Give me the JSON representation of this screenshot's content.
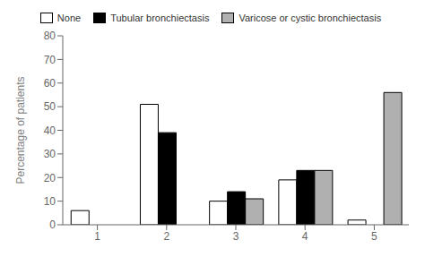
{
  "chart_data": {
    "type": "bar",
    "categories": [
      "1",
      "2",
      "3",
      "4",
      "5"
    ],
    "series": [
      {
        "name": "None",
        "color": "#ffffff",
        "values": [
          6,
          51,
          10,
          19,
          2
        ]
      },
      {
        "name": "Tubular bronchiectasis",
        "color": "#000000",
        "values": [
          0,
          39,
          14,
          23,
          0
        ]
      },
      {
        "name": "Varicose or cystic bronchiectasis",
        "color": "#b0b0b0",
        "values": [
          0,
          0,
          11,
          23,
          56
        ]
      }
    ],
    "ylabel": "Percentage of patients",
    "ylim": [
      0,
      80
    ],
    "yticks": [
      0,
      10,
      20,
      30,
      40,
      50,
      60,
      70,
      80
    ],
    "grid": false,
    "legend": "top"
  }
}
